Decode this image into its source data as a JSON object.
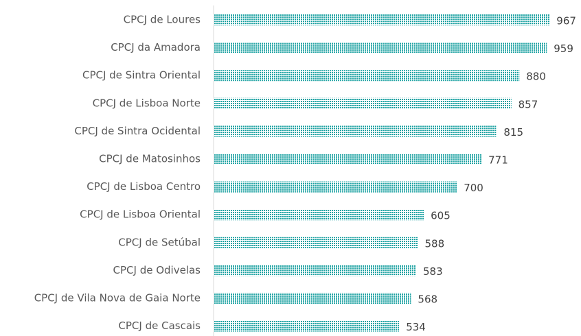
{
  "chart_data": {
    "type": "barh",
    "categories": [
      "CPCJ de Loures",
      "CPCJ da Amadora",
      "CPCJ de Sintra Oriental",
      "CPCJ de Lisboa Norte",
      "CPCJ de Sintra Ocidental",
      "CPCJ de Matosinhos",
      "CPCJ de Lisboa Centro",
      "CPCJ de Lisboa Oriental",
      "CPCJ de Setúbal",
      "CPCJ de Odivelas",
      "CPCJ de Vila Nova de Gaia Norte",
      "CPCJ de Cascais"
    ],
    "values": [
      967,
      959,
      880,
      857,
      815,
      771,
      700,
      605,
      588,
      583,
      568,
      534
    ],
    "color": "#1fa3a3",
    "xlim": [
      0,
      1000
    ]
  }
}
